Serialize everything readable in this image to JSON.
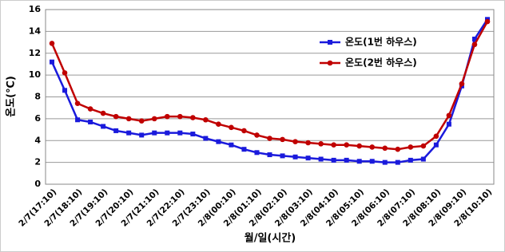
{
  "chart_data": {
    "type": "line",
    "x_label": "월/일(시간)",
    "y_label": "온도(℃)",
    "categories": [
      "2/7(17:10)",
      null,
      "2/7(18:10)",
      null,
      "2/7(19:10)",
      null,
      "2/7(20:10)",
      null,
      "2/7(21:10)",
      null,
      "2/7(22:10)",
      null,
      "2/7(23:10)",
      null,
      "2/8(00:10)",
      null,
      "2/8(01:10)",
      null,
      "2/8(02:10)",
      null,
      "2/8(03:10)",
      null,
      "2/8(04:10)",
      null,
      "2/8(05:10)",
      null,
      "2/8(06:10)",
      null,
      "2/8(07:10)",
      null,
      "2/8(08:10)",
      null,
      "2/8(09:10)",
      null,
      "2/8(10:10)"
    ],
    "series": [
      {
        "name": "온도(1번 하우스)",
        "color": "#1a1adc",
        "marker": "square",
        "values": [
          11.2,
          8.6,
          5.9,
          5.7,
          5.3,
          4.9,
          4.7,
          4.5,
          4.7,
          4.7,
          4.7,
          4.6,
          4.2,
          3.9,
          3.6,
          3.2,
          2.9,
          2.7,
          2.6,
          2.5,
          2.4,
          2.3,
          2.2,
          2.2,
          2.1,
          2.1,
          2.0,
          2.0,
          2.2,
          2.3,
          3.6,
          5.5,
          9.0,
          13.3,
          15.1
        ]
      },
      {
        "name": "온도(2번 하우스)",
        "color": "#c00000",
        "marker": "circle",
        "values": [
          12.9,
          10.2,
          7.4,
          6.9,
          6.5,
          6.2,
          6.0,
          5.8,
          6.0,
          6.2,
          6.2,
          6.1,
          5.9,
          5.5,
          5.2,
          4.9,
          4.5,
          4.2,
          4.1,
          3.9,
          3.8,
          3.7,
          3.6,
          3.6,
          3.5,
          3.4,
          3.3,
          3.2,
          3.4,
          3.5,
          4.4,
          6.3,
          9.2,
          12.8,
          14.9
        ]
      }
    ],
    "ylim": [
      0,
      16
    ],
    "yticks": [
      0,
      2,
      4,
      6,
      8,
      10,
      12,
      14,
      16
    ],
    "grid": true,
    "legend": "upper right"
  }
}
